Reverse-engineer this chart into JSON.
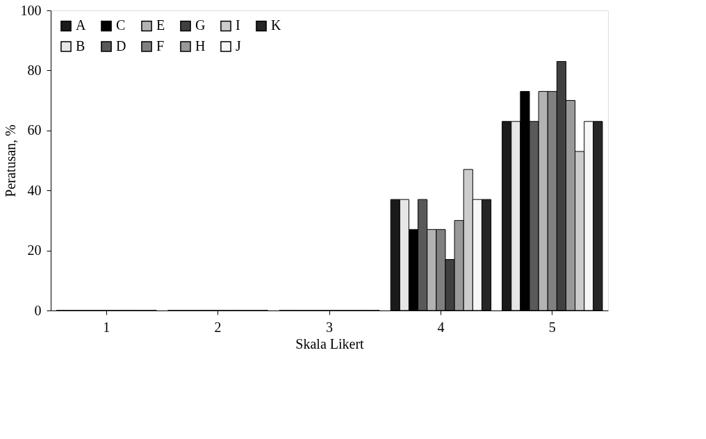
{
  "chart_data": {
    "type": "bar",
    "xlabel": "Skala Likert",
    "ylabel": "Peratusan, %",
    "categories": [
      "1",
      "2",
      "3",
      "4",
      "5"
    ],
    "series": [
      {
        "name": "A",
        "color": "#1a1a1a",
        "values": [
          0,
          0,
          0,
          37,
          63
        ]
      },
      {
        "name": "B",
        "color": "#e6e6e6",
        "values": [
          0,
          0,
          0,
          37,
          63
        ]
      },
      {
        "name": "C",
        "color": "#000000",
        "values": [
          0,
          0,
          0,
          27,
          73
        ]
      },
      {
        "name": "D",
        "color": "#595959",
        "values": [
          0,
          0,
          0,
          37,
          63
        ]
      },
      {
        "name": "E",
        "color": "#b3b3b3",
        "values": [
          0,
          0,
          0,
          27,
          73
        ]
      },
      {
        "name": "F",
        "color": "#808080",
        "values": [
          0,
          0,
          0,
          27,
          73
        ]
      },
      {
        "name": "G",
        "color": "#404040",
        "values": [
          0,
          0,
          0,
          17,
          83
        ]
      },
      {
        "name": "H",
        "color": "#999999",
        "values": [
          0,
          0,
          0,
          30,
          70
        ]
      },
      {
        "name": "I",
        "color": "#cccccc",
        "values": [
          0,
          0,
          0,
          47,
          53
        ]
      },
      {
        "name": "J",
        "color": "#f7f7f7",
        "values": [
          0,
          0,
          0,
          37,
          63
        ]
      },
      {
        "name": "K",
        "color": "#262626",
        "values": [
          0,
          0,
          0,
          37,
          63
        ]
      }
    ],
    "ylim": [
      0,
      100
    ],
    "yticks": [
      0,
      20,
      40,
      60,
      80,
      100
    ],
    "grid": false,
    "legend": "top left"
  }
}
